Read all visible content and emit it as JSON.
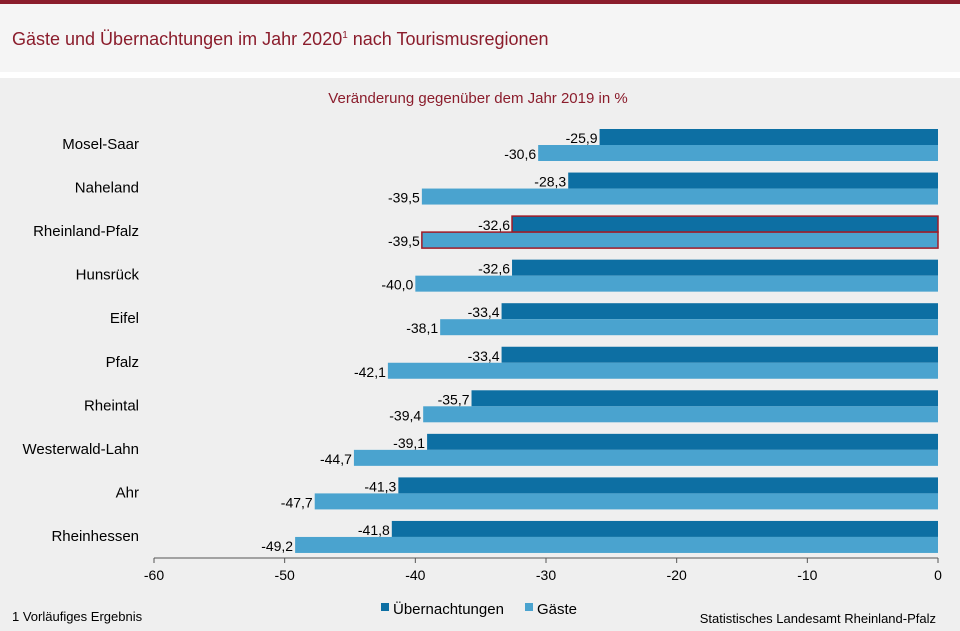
{
  "header": {
    "title_main": "Gäste und Übernachtungen im Jahr 2020",
    "title_sup": "1",
    "title_rest": " nach Tourismusregionen"
  },
  "footer": {
    "footnote": "1 Vorläufiges Ergebnis",
    "source": "Statistisches Landesamt Rheinland-Pfalz"
  },
  "colors": {
    "brand": "#8b1d2c",
    "uebernachtungen": "#0d6fa3",
    "gaeste": "#4aa3cf",
    "highlight_border": "#a01b27"
  },
  "chart_data": {
    "type": "bar",
    "orientation": "horizontal",
    "subtitle": "Veränderung  gegenüber dem Jahr 2019 in %",
    "categories": [
      "Mosel-Saar",
      "Naheland",
      "Rheinland-Pfalz",
      "Hunsrück",
      "Eifel",
      "Pfalz",
      "Rheintal",
      "Westerwald-Lahn",
      "Ahr",
      "Rheinhessen"
    ],
    "highlighted_category": "Rheinland-Pfalz",
    "series": [
      {
        "name": "Übernachtungen",
        "values": [
          -25.9,
          -28.3,
          -32.6,
          -32.6,
          -33.4,
          -33.4,
          -35.7,
          -39.1,
          -41.3,
          -41.8
        ],
        "labels": [
          "-25,9",
          "-28,3",
          "-32,6",
          "-32,6",
          "-33,4",
          "-33,4",
          "-35,7",
          "-39,1",
          "-41,3",
          "-41,8"
        ]
      },
      {
        "name": "Gäste",
        "values": [
          -30.6,
          -39.5,
          -39.5,
          -40.0,
          -38.1,
          -42.1,
          -39.4,
          -44.7,
          -47.7,
          -49.2
        ],
        "labels": [
          "-30,6",
          "-39,5",
          "-39,5",
          "-40,0",
          "-38,1",
          "-42,1",
          "-39,4",
          "-44,7",
          "-47,7",
          "-49,2"
        ]
      }
    ],
    "xlim": [
      -60,
      0
    ],
    "xticks": [
      -60,
      -50,
      -40,
      -30,
      -20,
      -10,
      0
    ],
    "xtick_labels": [
      "-60",
      "-50",
      "-40",
      "-30",
      "-20",
      "-10",
      "0"
    ],
    "grid": false,
    "legend_position": "bottom-center"
  }
}
